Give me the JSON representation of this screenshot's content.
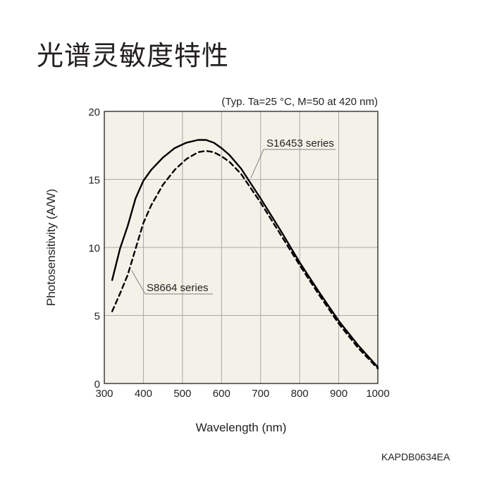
{
  "page": {
    "title": "光谱灵敏度特性",
    "doc_code": "KAPDB0634EA"
  },
  "chart_data": {
    "type": "line",
    "subtitle": "(Typ. Ta=25 °C, M=50 at 420 nm)",
    "xlabel": "Wavelength (nm)",
    "ylabel": "Photosensitivity (A/W)",
    "xlim": [
      300,
      1000
    ],
    "ylim": [
      0,
      20
    ],
    "xticks": [
      300,
      400,
      500,
      600,
      700,
      800,
      900,
      1000
    ],
    "yticks": [
      0,
      5,
      10,
      15,
      20
    ],
    "grid": true,
    "plot_background": "#f4f1e8",
    "series": [
      {
        "name": "S16453 series",
        "style": "solid",
        "color": "#000000",
        "x": [
          320,
          340,
          360,
          380,
          400,
          420,
          450,
          480,
          510,
          540,
          560,
          580,
          600,
          620,
          650,
          700,
          750,
          800,
          850,
          900,
          950,
          1000
        ],
        "y": [
          7.6,
          9.9,
          11.6,
          13.6,
          14.9,
          15.7,
          16.6,
          17.3,
          17.7,
          17.9,
          17.9,
          17.7,
          17.3,
          16.8,
          15.8,
          13.6,
          11.3,
          8.9,
          6.7,
          4.6,
          2.8,
          1.2
        ]
      },
      {
        "name": "S8664 series",
        "style": "dashed",
        "color": "#000000",
        "x": [
          320,
          340,
          360,
          380,
          400,
          420,
          450,
          480,
          510,
          540,
          560,
          580,
          600,
          620,
          650,
          700,
          750,
          800,
          850,
          900,
          950,
          1000
        ],
        "y": [
          5.3,
          6.6,
          8.0,
          9.9,
          11.8,
          13.1,
          14.6,
          15.7,
          16.5,
          17.0,
          17.1,
          17.0,
          16.7,
          16.3,
          15.4,
          13.3,
          11.0,
          8.7,
          6.5,
          4.4,
          2.6,
          1.1
        ]
      }
    ],
    "annotations": [
      {
        "text": "S16453 series",
        "series": "S16453 series",
        "points_to": [
          675,
          15.1
        ]
      },
      {
        "text": "S8664 series",
        "series": "S8664 series",
        "points_to": [
          370,
          8.3
        ]
      }
    ]
  }
}
